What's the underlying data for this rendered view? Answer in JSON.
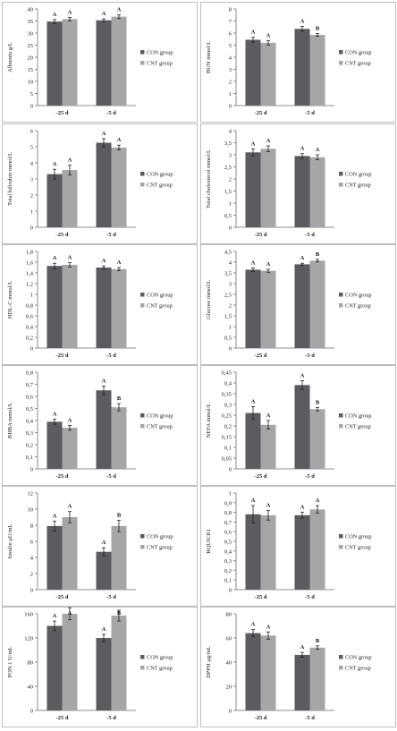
{
  "colors": {
    "con": "#5b5b60",
    "cnt": "#a6a6a8",
    "axis": "#8c8c8c",
    "border": "#bdbdbd",
    "error": "#222222"
  },
  "chart_data": [
    {
      "type": "bar",
      "ylabel": "Albumin g/L",
      "categories": [
        "-25 d",
        "-5 d"
      ],
      "ylim": [
        0,
        40
      ],
      "yticks": [
        "0",
        "5",
        "10",
        "15",
        "20",
        "25",
        "30",
        "35",
        "40"
      ],
      "series": [
        {
          "name": "CON group",
          "values": [
            34.8,
            35.3
          ],
          "errors": [
            0.8,
            0.6
          ],
          "letters": [
            "A",
            "A"
          ]
        },
        {
          "name": "CNT group",
          "values": [
            35.8,
            36.8
          ],
          "errors": [
            0.7,
            0.8
          ],
          "letters": [
            "A",
            "A"
          ]
        }
      ]
    },
    {
      "type": "bar",
      "ylabel": "BUN mmol/L",
      "categories": [
        "-25 d",
        "-5 d"
      ],
      "ylim": [
        0,
        8
      ],
      "yticks": [
        "0",
        "1",
        "2",
        "3",
        "4",
        "5",
        "6",
        "7",
        "8"
      ],
      "series": [
        {
          "name": "CON group",
          "values": [
            5.45,
            6.35
          ],
          "errors": [
            0.2,
            0.2
          ],
          "letters": [
            "A",
            "A"
          ]
        },
        {
          "name": "CNT group",
          "values": [
            5.2,
            5.85
          ],
          "errors": [
            0.18,
            0.12
          ],
          "letters": [
            "A",
            "B"
          ]
        }
      ]
    },
    {
      "type": "bar",
      "ylabel": "Total bilirubin mmol/L",
      "categories": [
        "-25 d",
        "-5 d"
      ],
      "ylim": [
        0,
        6
      ],
      "yticks": [
        "0",
        "1",
        "2",
        "3",
        "4",
        "5",
        "6"
      ],
      "series": [
        {
          "name": "CON group",
          "values": [
            3.3,
            5.25
          ],
          "errors": [
            0.3,
            0.25
          ],
          "letters": [
            "A",
            "A"
          ]
        },
        {
          "name": "CNT group",
          "values": [
            3.55,
            4.95
          ],
          "errors": [
            0.3,
            0.15
          ],
          "letters": [
            "A",
            "A"
          ]
        }
      ]
    },
    {
      "type": "bar",
      "ylabel": "Total cholesterol mmol/L",
      "categories": [
        "-25 d",
        "-5 d"
      ],
      "ylim": [
        0,
        4
      ],
      "yticks": [
        "0",
        "0,5",
        "1",
        "1,5",
        "2",
        "2,5",
        "3",
        "3,5",
        "4"
      ],
      "series": [
        {
          "name": "CON group",
          "values": [
            3.1,
            2.95
          ],
          "errors": [
            0.15,
            0.1
          ],
          "letters": [
            "A",
            "A"
          ]
        },
        {
          "name": "CNT group",
          "values": [
            3.25,
            2.9
          ],
          "errors": [
            0.12,
            0.1
          ],
          "letters": [
            "A",
            "A"
          ]
        }
      ]
    },
    {
      "type": "bar",
      "ylabel": "HDL-C mmol/L",
      "categories": [
        "-25 d",
        "-5 d"
      ],
      "ylim": [
        0,
        1.8
      ],
      "yticks": [
        "0",
        "0,2",
        "0,4",
        "0,6",
        "0,8",
        "1",
        "1,2",
        "1,4",
        "1,6",
        "1,8"
      ],
      "series": [
        {
          "name": "CON group",
          "values": [
            1.53,
            1.5
          ],
          "errors": [
            0.05,
            0.03
          ],
          "letters": [
            "A",
            "A"
          ]
        },
        {
          "name": "CNT group",
          "values": [
            1.55,
            1.47
          ],
          "errors": [
            0.04,
            0.03
          ],
          "letters": [
            "A",
            "A"
          ]
        }
      ]
    },
    {
      "type": "bar",
      "ylabel": "Glucose mmol/L",
      "categories": [
        "-25 d",
        "-5 d"
      ],
      "ylim": [
        0,
        4.5
      ],
      "yticks": [
        "0",
        "0,5",
        "1",
        "1,5",
        "2",
        "2,5",
        "3",
        "3,5",
        "4",
        "4,5"
      ],
      "series": [
        {
          "name": "CON group",
          "values": [
            3.65,
            3.9
          ],
          "errors": [
            0.08,
            0.05
          ],
          "letters": [
            "A",
            "A"
          ]
        },
        {
          "name": "CNT group",
          "values": [
            3.6,
            4.07
          ],
          "errors": [
            0.07,
            0.06
          ],
          "letters": [
            "A",
            "B"
          ]
        }
      ]
    },
    {
      "type": "bar",
      "ylabel": "BHBA mmol/L",
      "categories": [
        "-25 d",
        "-5 d"
      ],
      "ylim": [
        0,
        0.8
      ],
      "yticks": [
        "0",
        "0,1",
        "0,2",
        "0,3",
        "0,4",
        "0,5",
        "0,6",
        "0,7",
        "0,8"
      ],
      "series": [
        {
          "name": "CON group",
          "values": [
            0.39,
            0.65
          ],
          "errors": [
            0.02,
            0.035
          ],
          "letters": [
            "A",
            "A"
          ]
        },
        {
          "name": "CNT group",
          "values": [
            0.34,
            0.51
          ],
          "errors": [
            0.02,
            0.03
          ],
          "letters": [
            "A",
            "B"
          ]
        }
      ]
    },
    {
      "type": "bar",
      "ylabel": "NEFA mmol/L",
      "categories": [
        "-25 d",
        "-5 d"
      ],
      "ylim": [
        0,
        0.45
      ],
      "yticks": [
        "0",
        "0,05",
        "0,1",
        "0,15",
        "0,2",
        "0,25",
        "0,3",
        "0,35",
        "0,4",
        "0,45"
      ],
      "series": [
        {
          "name": "CON group",
          "values": [
            0.26,
            0.39
          ],
          "errors": [
            0.03,
            0.02
          ],
          "letters": [
            "A",
            "A"
          ]
        },
        {
          "name": "CNT group",
          "values": [
            0.205,
            0.278
          ],
          "errors": [
            0.02,
            0.008
          ],
          "letters": [
            "A",
            "B"
          ]
        }
      ]
    },
    {
      "type": "bar",
      "ylabel": "Insulin μU/mL",
      "categories": [
        "-25 d",
        "-5 d"
      ],
      "ylim": [
        0,
        12
      ],
      "yticks": [
        "0",
        "2",
        "4",
        "6",
        "8",
        "10",
        "12"
      ],
      "series": [
        {
          "name": "CON group",
          "values": [
            7.9,
            4.7
          ],
          "errors": [
            0.6,
            0.5
          ],
          "letters": [
            "A",
            "A"
          ]
        },
        {
          "name": "CNT group",
          "values": [
            9.0,
            7.9
          ],
          "errors": [
            0.7,
            0.7
          ],
          "letters": [
            "A",
            "B"
          ]
        }
      ]
    },
    {
      "type": "bar",
      "ylabel": "RQUICKI",
      "categories": [
        "-25 d",
        "-5 d"
      ],
      "ylim": [
        0,
        1
      ],
      "yticks": [
        "0",
        "0,1",
        "0,2",
        "0,3",
        "0,4",
        "0,5",
        "0,6",
        "0,7",
        "0,8",
        "0,9",
        "1"
      ],
      "series": [
        {
          "name": "CON group",
          "values": [
            0.78,
            0.77
          ],
          "errors": [
            0.09,
            0.03
          ],
          "letters": [
            "A",
            "A"
          ]
        },
        {
          "name": "CNT group",
          "values": [
            0.77,
            0.83
          ],
          "errors": [
            0.05,
            0.04
          ],
          "letters": [
            "A",
            "A"
          ]
        }
      ]
    },
    {
      "type": "bar",
      "ylabel": "PON 1 U/mL",
      "categories": [
        "-25 d",
        "-5 d"
      ],
      "ylim": [
        0,
        160
      ],
      "yticks": [
        "0",
        "40",
        "80",
        "120",
        "160"
      ],
      "series": [
        {
          "name": "CON group",
          "values": [
            140,
            120
          ],
          "errors": [
            8,
            6
          ],
          "letters": [
            "A",
            "A"
          ]
        },
        {
          "name": "CNT group",
          "values": [
            160,
            157
          ],
          "errors": [
            10,
            9
          ],
          "letters": [
            "A",
            "B"
          ]
        }
      ]
    },
    {
      "type": "bar",
      "ylabel": "DPPH μg/mL",
      "categories": [
        "-25 d",
        "-5 d"
      ],
      "ylim": [
        0,
        80
      ],
      "yticks": [
        "0",
        "20",
        "40",
        "60",
        "80"
      ],
      "series": [
        {
          "name": "CON group",
          "values": [
            64,
            46
          ],
          "errors": [
            3,
            2
          ],
          "letters": [
            "A",
            "A"
          ]
        },
        {
          "name": "CNT group",
          "values": [
            62,
            52
          ],
          "errors": [
            3,
            1.5
          ],
          "letters": [
            "A",
            "B"
          ]
        }
      ]
    }
  ]
}
